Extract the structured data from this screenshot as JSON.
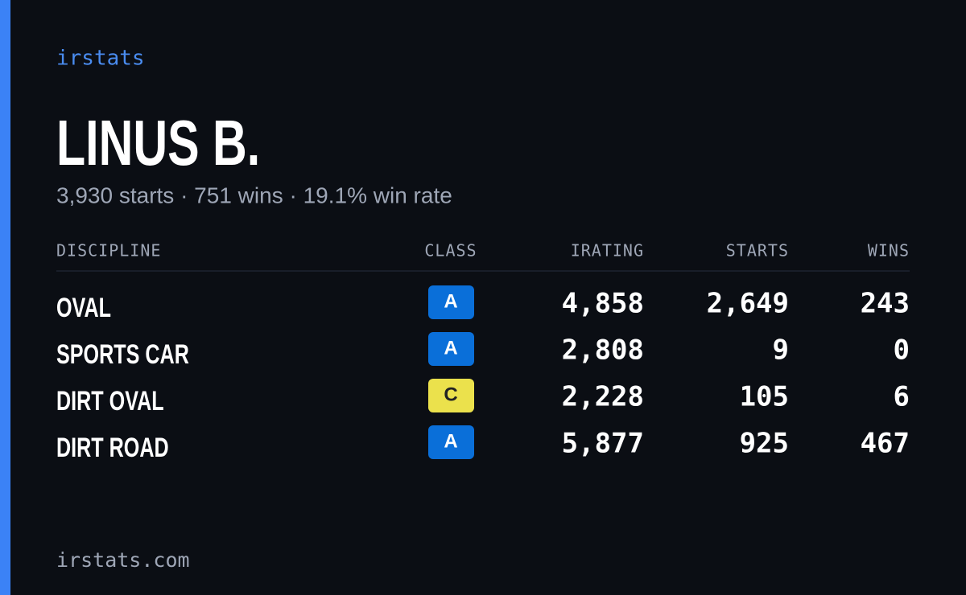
{
  "brand": "irstats",
  "driver": {
    "name": "LINUS B.",
    "summary": "3,930 starts · 751 wins · 19.1% win rate"
  },
  "table": {
    "headers": [
      "DISCIPLINE",
      "CLASS",
      "IRATING",
      "STARTS",
      "WINS"
    ],
    "rows": [
      {
        "discipline": "OVAL",
        "class": "A",
        "class_color": "#0a6fd9",
        "irating": "4,858",
        "starts": "2,649",
        "wins": "243"
      },
      {
        "discipline": "SPORTS CAR",
        "class": "A",
        "class_color": "#0a6fd9",
        "irating": "2,808",
        "starts": "9",
        "wins": "0"
      },
      {
        "discipline": "DIRT OVAL",
        "class": "C",
        "class_color": "#ebe14c",
        "irating": "2,228",
        "starts": "105",
        "wins": "6"
      },
      {
        "discipline": "DIRT ROAD",
        "class": "A",
        "class_color": "#0a6fd9",
        "irating": "5,877",
        "starts": "925",
        "wins": "467"
      }
    ]
  },
  "footer": "irstats.com"
}
